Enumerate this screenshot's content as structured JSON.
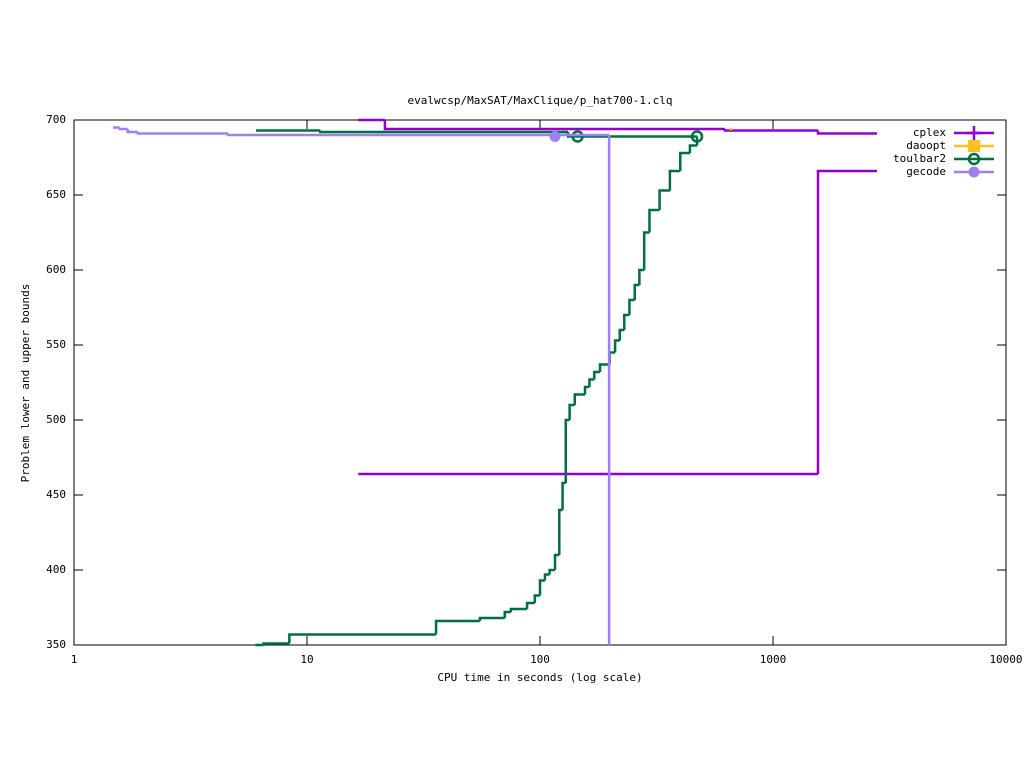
{
  "chart_data": {
    "type": "step",
    "title": "evalwcsp/MaxSAT/MaxClique/p_hat700-1.clq",
    "x_label": "CPU time in seconds (log scale)",
    "y_label": "Problem lower and upper bounds",
    "xlim": [
      1,
      10000
    ],
    "ylim": [
      350,
      700
    ],
    "log_x": true,
    "xticks": [
      1,
      10,
      100,
      1000,
      10000
    ],
    "yticks": [
      350,
      400,
      450,
      500,
      550,
      600,
      650,
      700
    ],
    "legend": "top-right",
    "series": [
      {
        "name": "cplex",
        "color": "#9400d3",
        "marker": "plus",
        "x": [
          16.6,
          21.6,
          622,
          1560,
          2795
        ],
        "values": [
          700,
          694,
          693,
          691,
          691
        ],
        "lower_x": [
          16.6,
          1560,
          2795
        ],
        "lower_values": [
          464,
          666,
          666
        ]
      },
      {
        "name": "daoopt",
        "color": "#ffc020",
        "marker": "square",
        "x": [
          650,
          670
        ],
        "values": [
          694,
          694
        ]
      },
      {
        "name": "toulbar2",
        "color": "#007040",
        "marker": "circle-open",
        "x": [
          6.04,
          11.4,
          132,
          472
        ],
        "values": [
          693,
          692,
          689,
          689
        ],
        "lower_x": [
          6.0,
          6.5,
          8.4,
          35.8,
          55.2,
          70.6,
          75,
          88,
          95,
          100,
          105,
          110,
          116,
          121,
          125,
          129,
          134,
          141,
          156,
          163,
          171,
          181,
          199,
          210,
          220,
          230,
          242,
          255,
          267,
          280,
          295,
          326,
          361,
          400,
          440,
          472
        ],
        "lower_values": [
          350,
          351,
          357,
          366,
          368,
          372,
          374,
          378,
          383,
          393,
          397,
          400,
          410,
          440,
          458,
          500,
          510,
          517,
          522,
          527,
          532,
          537,
          545,
          553,
          560,
          570,
          580,
          590,
          600,
          625,
          640,
          653,
          666,
          678,
          683,
          689
        ],
        "points": {
          "x": [
            145,
            472
          ],
          "values": [
            689,
            689
          ]
        }
      },
      {
        "name": "gecode",
        "color": "#a080f0",
        "marker": "circle",
        "x": [
          1.47,
          1.57,
          1.7,
          1.88,
          4.58,
          198
        ],
        "values": [
          695,
          694,
          692,
          691,
          690,
          689
        ],
        "lower_x": [
          198,
          198
        ],
        "lower_values": [
          350,
          689
        ],
        "points": {
          "x": [
            116
          ],
          "values": [
            689
          ]
        }
      }
    ]
  }
}
